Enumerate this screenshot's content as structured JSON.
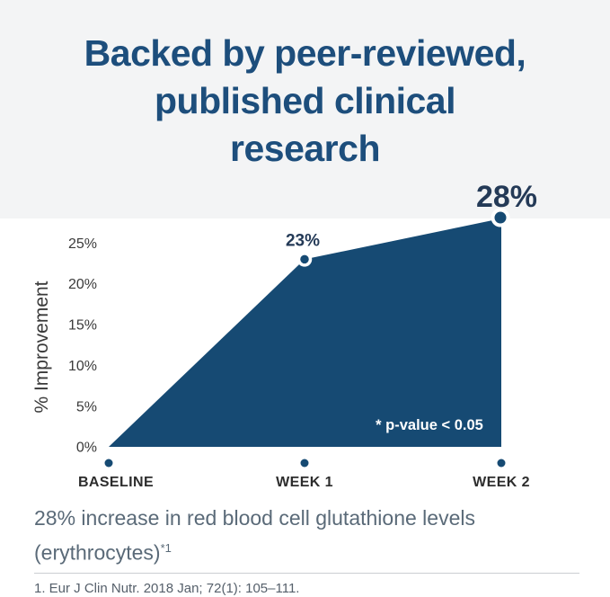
{
  "header": {
    "title_lines": [
      "Backed by peer-reviewed,",
      "published clinical",
      "research"
    ],
    "title_color": "#1d4e7c",
    "band_color": "#f3f4f5"
  },
  "chart_data": {
    "type": "area",
    "title": "",
    "categories": [
      "BASELINE",
      "WEEK 1",
      "WEEK 2"
    ],
    "values": [
      0,
      23,
      28
    ],
    "point_labels": [
      "",
      "23%",
      "28%"
    ],
    "xlabel": "",
    "ylabel": "% Improvement",
    "ytick_labels": [
      "25%",
      "20%",
      "15%",
      "10%",
      "5%",
      "0%"
    ],
    "ytick_values": [
      25,
      20,
      15,
      10,
      5,
      0
    ],
    "ylim": [
      0,
      28
    ],
    "grid": false,
    "legend": false,
    "annotation": "* p-value < 0.05",
    "colors": {
      "fill": "#164a73",
      "marker": "#164a73",
      "marker_ring": "#ffffff",
      "axis_dot": "#164a73",
      "point_label": "#243a57",
      "annotation_text": "#ffffff"
    }
  },
  "caption": {
    "text": "28% increase in red blood cell glutathione levels (erythrocytes)",
    "sup": "*1"
  },
  "footnote": "1. Eur J Clin Nutr. 2018 Jan; 72(1): 105–111."
}
